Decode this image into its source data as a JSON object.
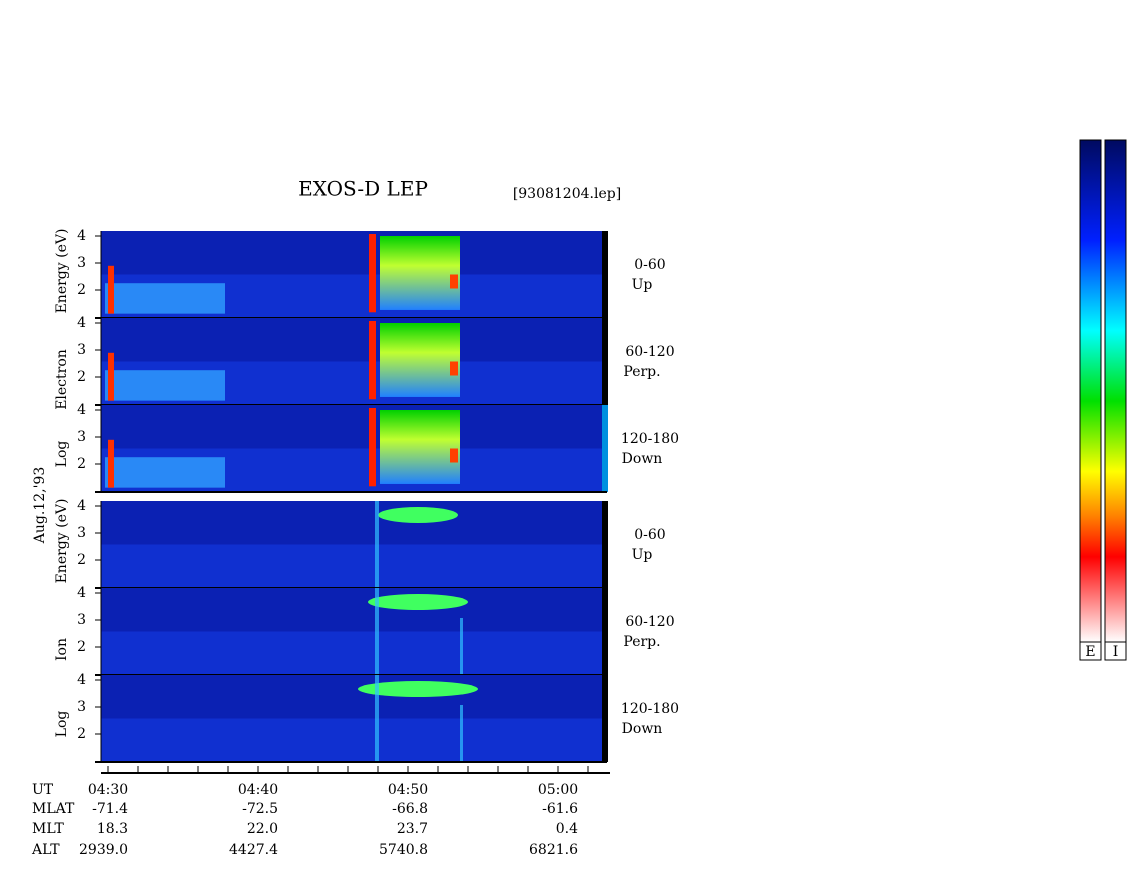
{
  "header": {
    "title": "EXOS-D LEP",
    "file": "[93081204.lep]",
    "date": "Aug.12,'93"
  },
  "electron": {
    "axis_label": [
      "Log",
      "Electron",
      "Energy (eV)"
    ],
    "panels": [
      {
        "ticks": [
          "4",
          "3",
          "2"
        ],
        "angle": "0-60",
        "direction": "Up"
      },
      {
        "ticks": [
          "4",
          "3",
          "2"
        ],
        "angle": "60-120",
        "direction": "Perp."
      },
      {
        "ticks": [
          "4",
          "3",
          "2"
        ],
        "angle": "120-180",
        "direction": "Down"
      }
    ]
  },
  "ion": {
    "axis_label": [
      "Log",
      "Ion",
      "Energy (eV)"
    ],
    "panels": [
      {
        "ticks": [
          "4",
          "3",
          "2"
        ],
        "angle": "0-60",
        "direction": "Up"
      },
      {
        "ticks": [
          "4",
          "3",
          "2"
        ],
        "angle": "60-120",
        "direction": "Perp."
      },
      {
        "ticks": [
          "4",
          "3",
          "2"
        ],
        "angle": "120-180",
        "direction": "Down"
      }
    ]
  },
  "time_axis": {
    "rows": [
      {
        "name": "UT",
        "values": [
          "04:30",
          "04:40",
          "04:50",
          "05:00"
        ]
      },
      {
        "name": "MLAT",
        "values": [
          "-71.4",
          "-72.5",
          "-66.8",
          "-61.6"
        ]
      },
      {
        "name": "MLT",
        "values": [
          "18.3",
          "22.0",
          "23.7",
          "0.4"
        ]
      },
      {
        "name": "ALT",
        "values": [
          "2939.0",
          "4427.4",
          "5740.8",
          "6821.6"
        ]
      }
    ]
  },
  "colorbars": [
    "E",
    "I"
  ]
}
